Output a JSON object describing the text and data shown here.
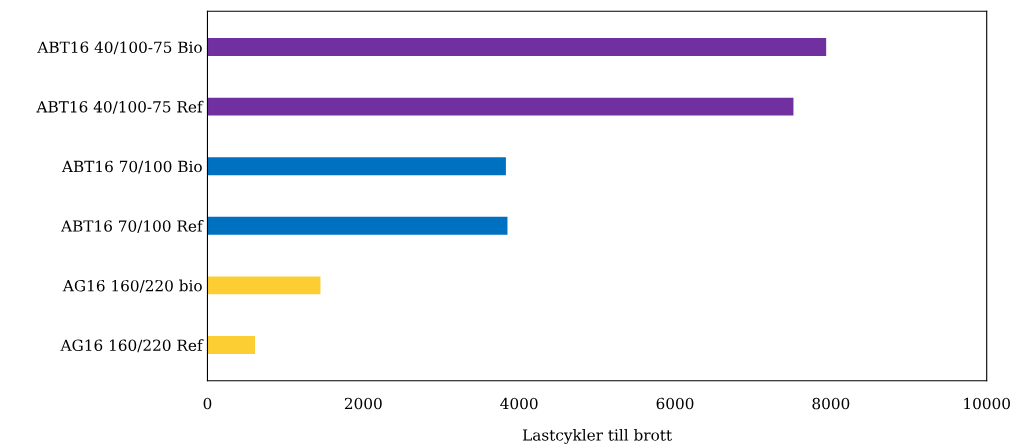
{
  "chart_data": {
    "type": "bar",
    "orientation": "horizontal",
    "xlabel": "Lastcykler till brott",
    "categories": [
      "ABT16 40/100-75 Bio",
      "ABT16 40/100-75 Ref",
      "ABT16 70/100 Bio",
      "ABT16 70/100 Ref",
      "AG16 160/220 bio",
      "AG16 160/220 Ref"
    ],
    "values": [
      7940,
      7520,
      3830,
      3850,
      1450,
      610
    ],
    "colors": [
      "#7030a0",
      "#7030a0",
      "#0070c0",
      "#0070c0",
      "#fdcd34",
      "#fdcd34"
    ],
    "xlim": [
      0,
      10000
    ],
    "xticks": [
      0,
      2000,
      4000,
      6000,
      8000,
      10000
    ],
    "grid": false
  }
}
